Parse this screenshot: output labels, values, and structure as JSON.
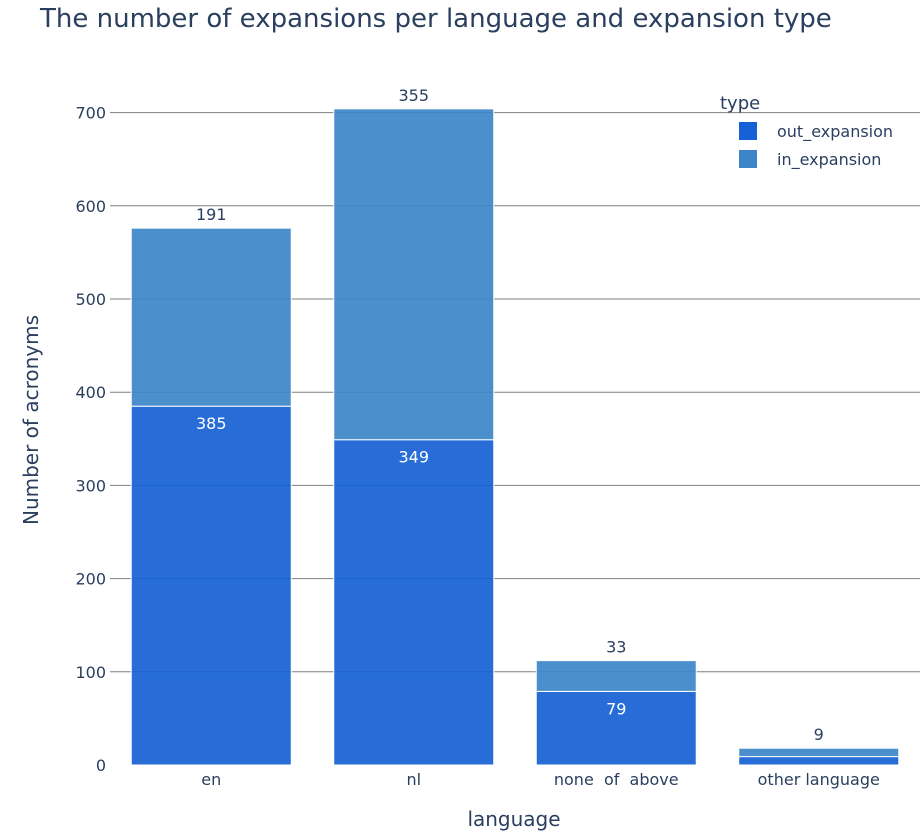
{
  "chart_data": {
    "type": "bar",
    "barmode": "stack",
    "title": "The number of expansions per language and expansion type",
    "xlabel": "language",
    "ylabel": "Number of acronyms",
    "categories": [
      "en",
      "nl",
      "none  of  above",
      "other language"
    ],
    "ylim": [
      0,
      720
    ],
    "yticks": [
      0,
      100,
      200,
      300,
      400,
      500,
      600,
      700
    ],
    "grid": true,
    "legend": {
      "title": "type",
      "placement": "top-right"
    },
    "series": [
      {
        "name": "out_expansion",
        "values": [
          385,
          349,
          79,
          9
        ],
        "labels": [
          "385",
          "349",
          "79",
          ""
        ],
        "color": "#1560D4"
      },
      {
        "name": "in_expansion",
        "values": [
          191,
          355,
          33,
          9
        ],
        "labels": [
          "191",
          "355",
          "33",
          "9"
        ],
        "color": "#3C85C8"
      }
    ]
  }
}
